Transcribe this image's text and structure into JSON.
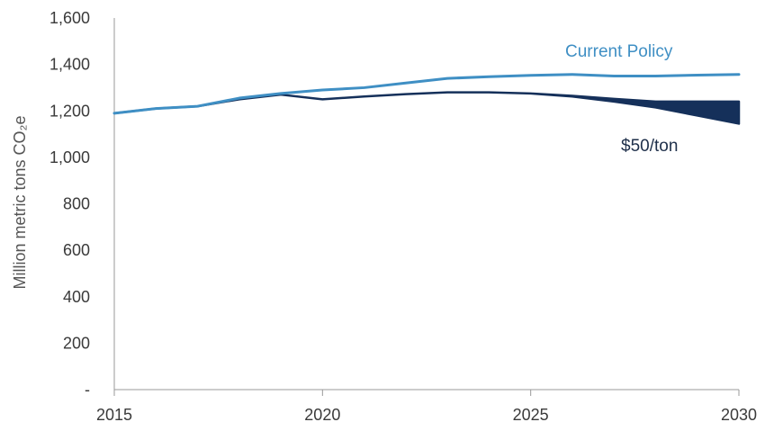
{
  "chart_data": {
    "type": "line",
    "ylabel": "Million metric tons CO₂e",
    "ylim": [
      0,
      1600
    ],
    "xlim": [
      2015,
      2030
    ],
    "x_ticks": [
      "2015",
      "2020",
      "2025",
      "2030"
    ],
    "y_ticks": [
      "-",
      "200",
      "400",
      "600",
      "800",
      "1,000",
      "1,200",
      "1,400",
      "1,600"
    ],
    "grid": false,
    "x": [
      2015,
      2016,
      2017,
      2018,
      2019,
      2020,
      2021,
      2022,
      2023,
      2024,
      2025,
      2026,
      2027,
      2028,
      2029,
      2030
    ],
    "series": [
      {
        "name": "Current Policy",
        "color": "#3f8fc4",
        "values": [
          1190,
          1210,
          1220,
          1255,
          1275,
          1290,
          1300,
          1320,
          1340,
          1347,
          1353,
          1357,
          1350,
          1350,
          1354,
          1357
        ]
      },
      {
        "name": "$50/ton",
        "color": "#15305a",
        "band": true,
        "values_upper": [
          1190,
          1210,
          1220,
          1250,
          1270,
          1250,
          1262,
          1272,
          1280,
          1280,
          1275,
          1265,
          1252,
          1240,
          1240,
          1240
        ],
        "values_lower": [
          1190,
          1210,
          1220,
          1250,
          1270,
          1250,
          1262,
          1272,
          1280,
          1280,
          1275,
          1262,
          1240,
          1215,
          1180,
          1145
        ]
      }
    ]
  }
}
